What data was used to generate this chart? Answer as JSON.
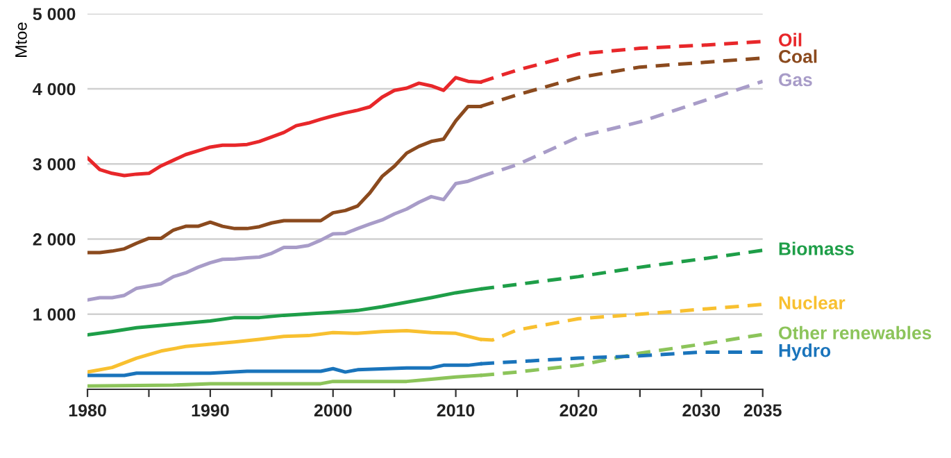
{
  "chart_data": {
    "type": "line",
    "ylabel": "Mtoe",
    "xlim": [
      1980,
      2035
    ],
    "ylim": [
      0,
      5000
    ],
    "xticks": [
      1980,
      {
        "value": 1985,
        "label": null
      },
      1990,
      {
        "value": 1995,
        "label": null
      },
      2000,
      {
        "value": 2005,
        "label": null
      },
      2010,
      {
        "value": 2015,
        "label": null
      },
      2020,
      {
        "value": 2025,
        "label": null
      },
      2030,
      2035
    ],
    "yticks": [
      {
        "value": 1000,
        "label": "1 000"
      },
      {
        "value": 2000,
        "label": "2 000"
      },
      {
        "value": 3000,
        "label": "3 000"
      },
      {
        "value": 4000,
        "label": "4 000"
      },
      {
        "value": 5000,
        "label": "5 000"
      }
    ],
    "grid": "y",
    "legend": false,
    "marker": "none",
    "series": [
      {
        "color": "#e8272a",
        "line_style": "solid",
        "x": [
          1980,
          1981,
          1982,
          1983,
          1984,
          1985,
          1986,
          1987,
          1988,
          1989,
          1990,
          1991,
          1992,
          1993,
          1994,
          1995,
          1996,
          1997,
          1998,
          1999,
          2000,
          2001,
          2002,
          2003,
          2004,
          2005,
          2006,
          2007,
          2008,
          2009,
          2010,
          2011,
          2012
        ],
        "values": [
          3080,
          2925,
          2875,
          2845,
          2865,
          2875,
          2975,
          3050,
          3125,
          3175,
          3225,
          3250,
          3250,
          3260,
          3300,
          3360,
          3420,
          3510,
          3545,
          3595,
          3640,
          3680,
          3715,
          3760,
          3890,
          3980,
          4010,
          4075,
          4040,
          3980,
          4150,
          4100,
          4090
        ]
      },
      {
        "name": "Oil",
        "color": "#e8272a",
        "line_style": "dashed",
        "x": [
          2012,
          2015,
          2020,
          2025,
          2030,
          2035
        ],
        "values": [
          4090,
          4250,
          4465,
          4540,
          4580,
          4630
        ]
      },
      {
        "color": "#8b4a1e",
        "line_style": "solid",
        "x": [
          1980,
          1981,
          1982,
          1983,
          1984,
          1985,
          1986,
          1987,
          1988,
          1989,
          1990,
          1991,
          1992,
          1993,
          1994,
          1995,
          1996,
          1997,
          1998,
          1999,
          2000,
          2001,
          2002,
          2003,
          2004,
          2005,
          2006,
          2007,
          2008,
          2009,
          2010,
          2011,
          2012
        ],
        "values": [
          1820,
          1820,
          1840,
          1870,
          1945,
          2010,
          2010,
          2120,
          2170,
          2170,
          2225,
          2170,
          2140,
          2140,
          2165,
          2215,
          2245,
          2245,
          2245,
          2245,
          2350,
          2380,
          2440,
          2615,
          2835,
          2970,
          3145,
          3235,
          3300,
          3330,
          3575,
          3765,
          3765
        ]
      },
      {
        "name": "Coal",
        "color": "#8b4a1e",
        "line_style": "dashed",
        "x": [
          2012,
          2015,
          2020,
          2025,
          2030,
          2035
        ],
        "values": [
          3765,
          3920,
          4150,
          4290,
          4350,
          4410
        ]
      },
      {
        "color": "#a89cc8",
        "line_style": "solid",
        "x": [
          1980,
          1981,
          1982,
          1983,
          1984,
          1985,
          1986,
          1987,
          1988,
          1989,
          1990,
          1991,
          1992,
          1993,
          1994,
          1995,
          1996,
          1997,
          1998,
          1999,
          2000,
          2001,
          2002,
          2003,
          2004,
          2005,
          2006,
          2007,
          2008,
          2009,
          2010,
          2011,
          2012
        ],
        "values": [
          1190,
          1220,
          1220,
          1250,
          1345,
          1375,
          1405,
          1500,
          1550,
          1625,
          1685,
          1730,
          1735,
          1750,
          1760,
          1810,
          1890,
          1890,
          1915,
          1985,
          2070,
          2075,
          2140,
          2200,
          2255,
          2335,
          2400,
          2490,
          2565,
          2525,
          2740,
          2770,
          2830
        ]
      },
      {
        "name": "Gas",
        "color": "#a89cc8",
        "line_style": "dashed",
        "x": [
          2012,
          2015,
          2020,
          2025,
          2030,
          2035
        ],
        "values": [
          2830,
          2990,
          3360,
          3560,
          3830,
          4100
        ]
      },
      {
        "color": "#1e9e48",
        "line_style": "solid",
        "x": [
          1980,
          1982,
          1984,
          1986,
          1988,
          1990,
          1992,
          1994,
          1996,
          1998,
          2000,
          2002,
          2004,
          2006,
          2008,
          2010,
          2012
        ],
        "values": [
          725,
          770,
          820,
          850,
          880,
          910,
          955,
          955,
          985,
          1005,
          1025,
          1050,
          1100,
          1160,
          1220,
          1285,
          1335
        ]
      },
      {
        "name": "Biomass",
        "color": "#1e9e48",
        "line_style": "dashed",
        "x": [
          2012,
          2020,
          2025,
          2030,
          2035
        ],
        "values": [
          1335,
          1500,
          1625,
          1735,
          1850
        ]
      },
      {
        "color": "#f8c030",
        "line_style": "solid",
        "x": [
          1980,
          1982,
          1984,
          1986,
          1988,
          1990,
          1992,
          1994,
          1996,
          1998,
          2000,
          2002,
          2004,
          2006,
          2008,
          2010,
          2012
        ],
        "values": [
          230,
          290,
          415,
          510,
          570,
          600,
          630,
          665,
          705,
          715,
          755,
          745,
          770,
          780,
          755,
          745,
          665
        ]
      },
      {
        "name": "Nuclear",
        "color": "#f8c030",
        "line_style": "dashed",
        "x": [
          2012,
          2013,
          2015,
          2020,
          2025,
          2030,
          2035
        ],
        "values": [
          665,
          657,
          790,
          940,
          1000,
          1065,
          1130
        ]
      },
      {
        "color": "#8cc45a",
        "line_style": "solid",
        "x": [
          1980,
          1987,
          1990,
          1999,
          2000,
          2006,
          2008,
          2010,
          2012
        ],
        "values": [
          45,
          55,
          75,
          75,
          105,
          105,
          135,
          165,
          185
        ]
      },
      {
        "name": "Other renewables",
        "color": "#8cc45a",
        "line_style": "dashed",
        "x": [
          2012,
          2015,
          2020,
          2025,
          2030,
          2035
        ],
        "values": [
          185,
          230,
          320,
          480,
          600,
          730
        ]
      },
      {
        "color": "#1a74bb",
        "line_style": "solid",
        "x": [
          1980,
          1983,
          1984,
          1990,
          1993,
          1999,
          2000,
          2001,
          2002,
          2006,
          2008,
          2009,
          2011,
          2012
        ],
        "values": [
          185,
          185,
          215,
          215,
          240,
          240,
          275,
          230,
          260,
          285,
          285,
          320,
          320,
          340
        ]
      },
      {
        "name": "Hydro",
        "color": "#1a74bb",
        "line_style": "dashed",
        "x": [
          2012,
          2020,
          2025,
          2030,
          2035
        ],
        "values": [
          340,
          415,
          445,
          495,
          495
        ]
      }
    ]
  }
}
